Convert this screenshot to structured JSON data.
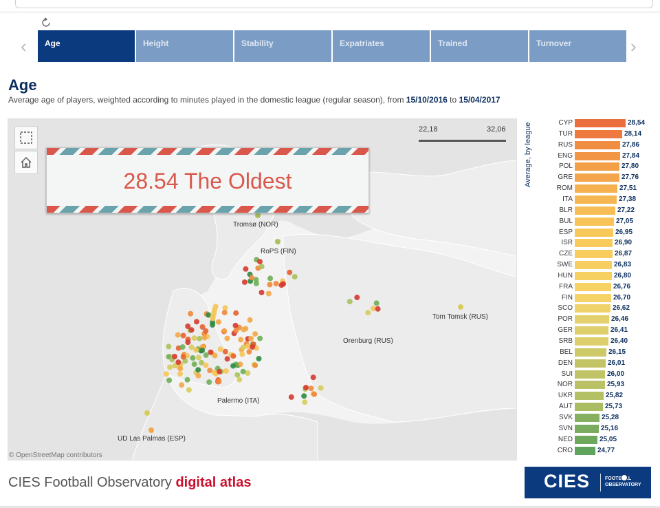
{
  "tabs": [
    {
      "label": "Age",
      "active": true
    },
    {
      "label": "Height",
      "active": false
    },
    {
      "label": "Stability",
      "active": false
    },
    {
      "label": "Expatriates",
      "active": false
    },
    {
      "label": "Trained",
      "active": false
    },
    {
      "label": "Turnover",
      "active": false
    }
  ],
  "icons": {
    "reload": "reload-icon",
    "prev": "chevron-left-icon",
    "next": "chevron-right-icon",
    "select": "marquee-select-icon",
    "home": "home-icon"
  },
  "page": {
    "title": "Age",
    "subtitle_text": "Average age of players, weighted according to minutes played in the domestic league (regular season), from ",
    "date_from": "15/10/2016",
    "subtitle_mid": " to ",
    "date_to": "15/04/2017"
  },
  "map": {
    "scale_min": "22,18",
    "scale_max": "32,06",
    "banner": "28.54 The Oldest",
    "labels": [
      "Tromsø (NOR)",
      "RoPS (FIN)",
      "Tom Tomsk (RUS)",
      "Orenburg (RUS)",
      "Palermo (ITA)",
      "UD Las Palmas (ESP)"
    ],
    "attribution": "© OpenStreetMap contributors"
  },
  "chart_data": {
    "type": "bar",
    "title": "",
    "ylabel": "Average, by league",
    "xlim": [
      22.18,
      32.06
    ],
    "categories": [
      "CYP",
      "TUR",
      "RUS",
      "ENG",
      "POL",
      "GRE",
      "ROM",
      "ITA",
      "BLR",
      "BUL",
      "ESP",
      "ISR",
      "CZE",
      "SWE",
      "HUN",
      "FRA",
      "FIN",
      "SCO",
      "POR",
      "GER",
      "SRB",
      "BEL",
      "DEN",
      "SUI",
      "NOR",
      "UKR",
      "AUT",
      "SVK",
      "SVN",
      "NED",
      "CRO"
    ],
    "values": [
      28.54,
      28.14,
      27.86,
      27.84,
      27.8,
      27.76,
      27.51,
      27.38,
      27.22,
      27.05,
      26.95,
      26.9,
      26.87,
      26.83,
      26.8,
      26.76,
      26.7,
      26.62,
      26.46,
      26.41,
      26.4,
      26.15,
      26.01,
      26.0,
      25.93,
      25.82,
      25.73,
      25.28,
      25.16,
      25.05,
      24.77
    ],
    "value_labels": [
      "28,54",
      "28,14",
      "27,86",
      "27,84",
      "27,80",
      "27,76",
      "27,51",
      "27,38",
      "27,22",
      "27,05",
      "26,95",
      "26,90",
      "26,87",
      "26,83",
      "26,80",
      "26,76",
      "26,70",
      "26,62",
      "26,46",
      "26,41",
      "26,40",
      "26,15",
      "26,01",
      "26,00",
      "25,93",
      "25,82",
      "25,73",
      "25,28",
      "25,16",
      "25,05",
      "24,77"
    ],
    "colors": [
      "#ec6e3e",
      "#ee7a3f",
      "#f08d42",
      "#f29545",
      "#f39f48",
      "#f4a54b",
      "#f5b04f",
      "#f6b752",
      "#f7bd55",
      "#f8c457",
      "#f8c85a",
      "#f8cb5c",
      "#f8cd5e",
      "#f7cf60",
      "#f7d062",
      "#f6d264",
      "#f5d366",
      "#f0d26a",
      "#e4d06c",
      "#dfcf6b",
      "#ddcf6b",
      "#cdc868",
      "#c2c466",
      "#c0c466",
      "#bac265",
      "#b3c064",
      "#abbd63",
      "#84b05f",
      "#79ac5e",
      "#6ea85d",
      "#5fa35c"
    ]
  },
  "footer": {
    "title": "CIES Football Observatory ",
    "accent": "digital atlas"
  },
  "logo": {
    "text": "CIES",
    "line1": "FOOTBALL",
    "line2": "OBSERVATORY"
  }
}
